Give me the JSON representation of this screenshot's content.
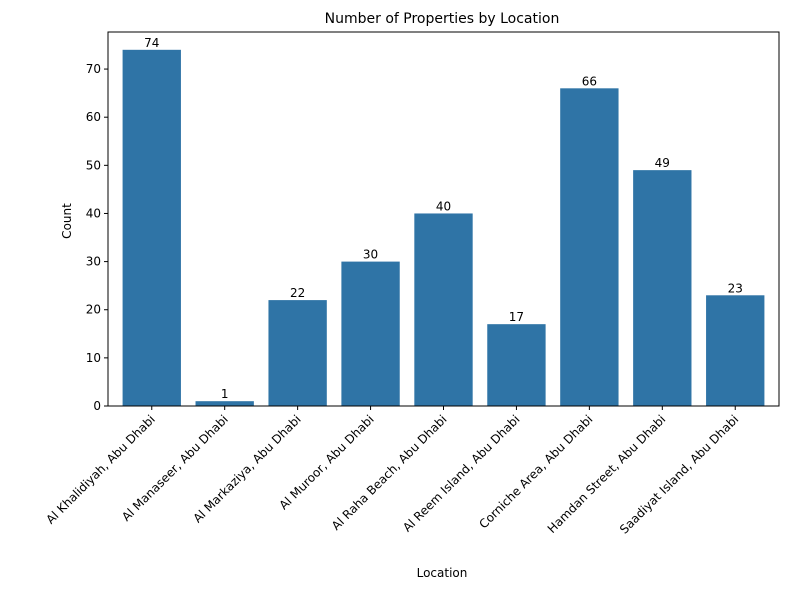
{
  "chart_data": {
    "type": "bar",
    "title": "Number of Properties by Location",
    "xlabel": "Location",
    "ylabel": "Count",
    "categories": [
      "Al Khalidiyah, Abu Dhabi",
      "Al Manaseer, Abu Dhabi",
      "Al Markaziya, Abu Dhabi",
      "Al Muroor, Abu Dhabi",
      "Al Raha Beach, Abu Dhabi",
      "Al Reem Island, Abu Dhabi",
      "Corniche Area, Abu Dhabi",
      "Hamdan Street, Abu Dhabi",
      "Saadiyat Island, Abu Dhabi"
    ],
    "values": [
      74,
      1,
      22,
      30,
      40,
      17,
      66,
      49,
      23
    ],
    "data_labels": [
      "74",
      "1",
      "22",
      "30",
      "40",
      "17",
      "66",
      "49",
      "23"
    ],
    "ylim": [
      0,
      77.7
    ],
    "yticks": [
      0,
      10,
      20,
      30,
      40,
      50,
      60,
      70
    ],
    "ytick_labels": [
      "0",
      "10",
      "20",
      "30",
      "40",
      "50",
      "60",
      "70"
    ],
    "grid": false,
    "legend": "none",
    "bar_color": "#2f74a6"
  }
}
